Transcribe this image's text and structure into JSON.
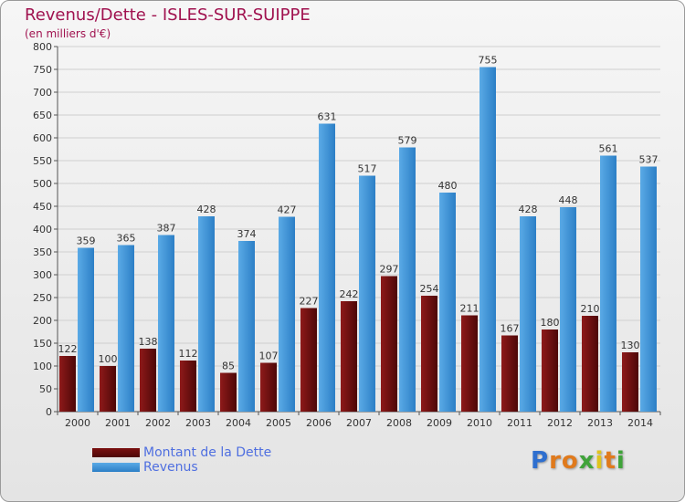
{
  "title": "Revenus/Dette - ISLES-SUR-SUIPPE",
  "subtitle": "(en milliers d'€)",
  "chart_data": {
    "type": "bar",
    "title": "Revenus/Dette - ISLES-SUR-SUIPPE",
    "ylabel": "(en milliers d'€)",
    "xlabel": "",
    "ylim": [
      0,
      800
    ],
    "y_ticks": [
      0,
      50,
      100,
      150,
      200,
      250,
      300,
      350,
      400,
      450,
      500,
      550,
      600,
      650,
      700,
      750,
      800
    ],
    "grid": true,
    "legend_position": "bottom-left",
    "categories": [
      "2000",
      "2001",
      "2002",
      "2003",
      "2004",
      "2005",
      "2006",
      "2007",
      "2008",
      "2009",
      "2010",
      "2011",
      "2012",
      "2013",
      "2014"
    ],
    "series": [
      {
        "name": "Montant de la Dette",
        "color": "#7a1010",
        "values": [
          122,
          100,
          138,
          112,
          85,
          107,
          227,
          242,
          297,
          254,
          211,
          167,
          180,
          210,
          130
        ]
      },
      {
        "name": "Revenus",
        "color": "#3d93d9",
        "values": [
          359,
          365,
          387,
          428,
          374,
          427,
          631,
          517,
          579,
          480,
          755,
          428,
          448,
          561,
          537
        ]
      }
    ]
  },
  "logo": {
    "letters": [
      "P",
      "r",
      "o",
      "x",
      "i",
      "t",
      "i"
    ],
    "colors": [
      "#2e6fcf",
      "#e07a1c",
      "#e07a1c",
      "#3fa33a",
      "#e0c41c",
      "#e07a1c",
      "#3fa33a"
    ]
  }
}
